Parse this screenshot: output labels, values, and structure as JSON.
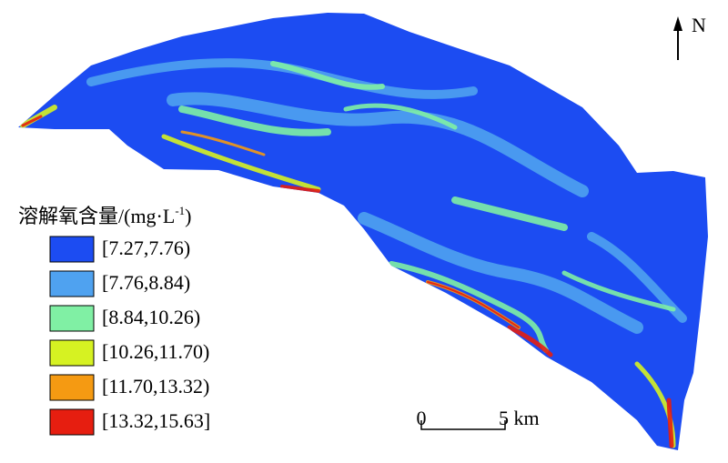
{
  "legend": {
    "title": "溶解氧含量/(mg·L",
    "title_superscript": "-1",
    "title_end": ")",
    "items": [
      {
        "label": "[7.27,7.76)",
        "color": "#1c4cf2"
      },
      {
        "label": "[7.76,8.84)",
        "color": "#4fa2f0"
      },
      {
        "label": "[8.84,10.26)",
        "color": "#80f0a4"
      },
      {
        "label": "[10.26,11.70)",
        "color": "#d6f222"
      },
      {
        "label": "[11.70,13.32)",
        "color": "#f59a12"
      },
      {
        "label": "[13.32,15.63]",
        "color": "#e61e10"
      }
    ]
  },
  "north_arrow": {
    "label": "N"
  },
  "scale_bar": {
    "start": "0",
    "end": "5 km"
  }
}
